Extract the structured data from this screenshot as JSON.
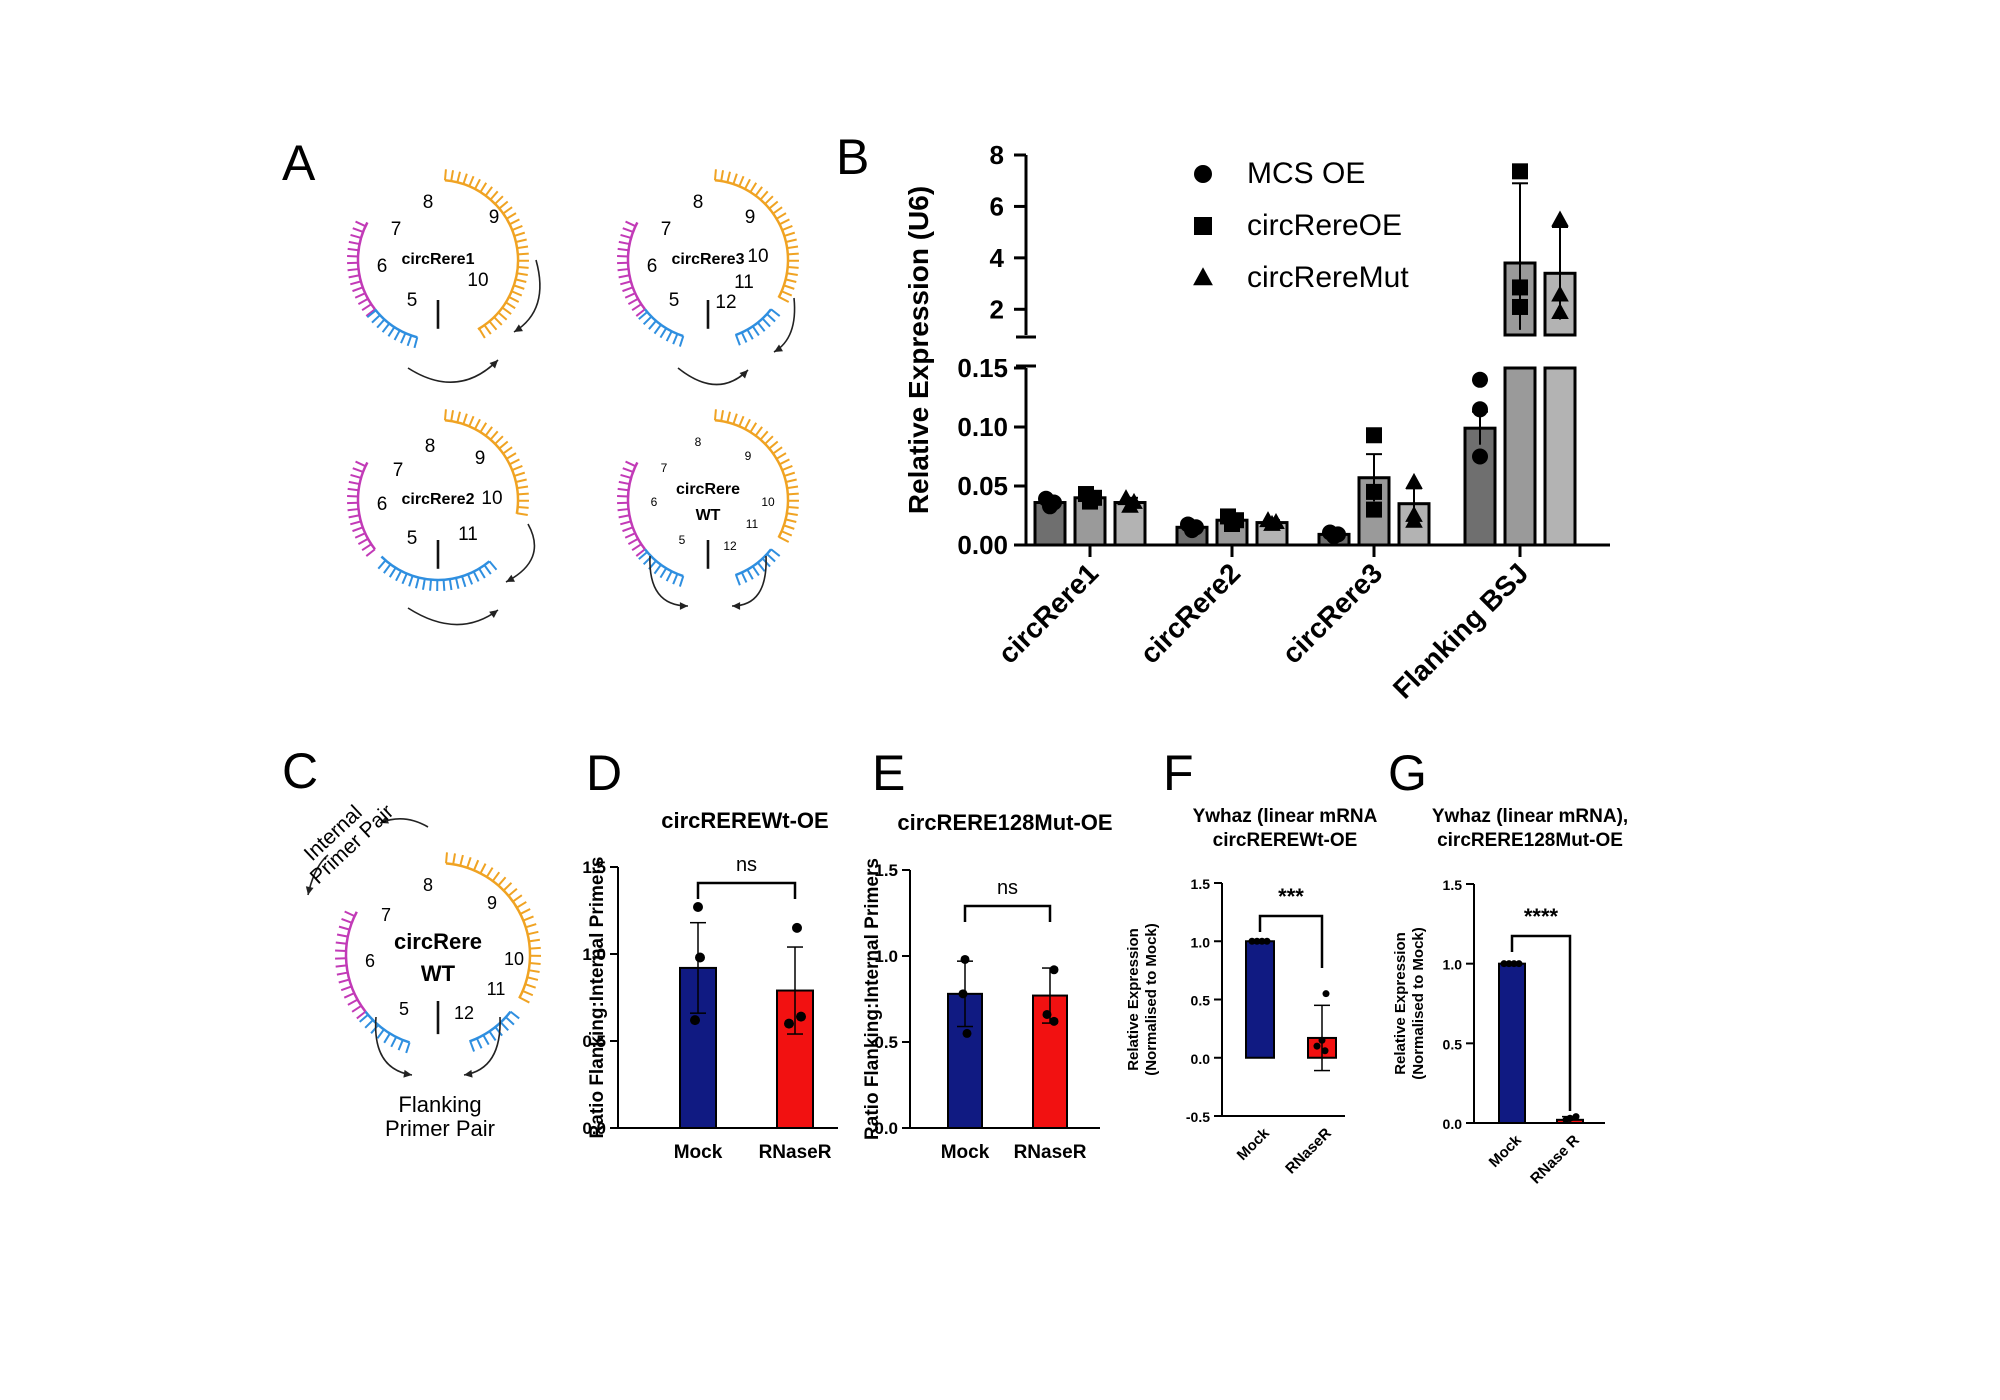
{
  "panels": {
    "A": {
      "letter": "A",
      "diagrams": [
        {
          "label": "circRere1",
          "label2": "",
          "exons": [
            "5",
            "6",
            "7",
            "8",
            "9",
            "10"
          ]
        },
        {
          "label": "circRere3",
          "label2": "",
          "exons": [
            "5",
            "6",
            "7",
            "8",
            "9",
            "10",
            "11",
            "12"
          ]
        },
        {
          "label": "circRere2",
          "label2": "",
          "exons": [
            "5",
            "6",
            "7",
            "8",
            "9",
            "10",
            "11"
          ]
        },
        {
          "label": "circRere",
          "label2": "WT",
          "exons": [
            "5",
            "6",
            "7",
            "8",
            "9",
            "10",
            "11",
            "12"
          ]
        }
      ]
    },
    "B": {
      "letter": "B"
    },
    "C": {
      "letter": "C",
      "label": "circRere",
      "label2": "WT",
      "exons": [
        "5",
        "6",
        "7",
        "8",
        "9",
        "10",
        "11",
        "12"
      ],
      "internal_primer": [
        "Internal",
        "Primer Pair"
      ],
      "flanking_primer": [
        "Flanking",
        "Primer Pair"
      ]
    },
    "D": {
      "letter": "D"
    },
    "E": {
      "letter": "E"
    },
    "F": {
      "letter": "F"
    },
    "G": {
      "letter": "G"
    }
  },
  "colors": {
    "magenta": "#c23ab7",
    "orange": "#f0a323",
    "blue": "#2f8fe0",
    "navy": "#101a82",
    "red": "#f21111",
    "dark_gray": "#6f6f6f",
    "mid_gray": "#9a9a9a",
    "light_gray": "#b3b3b3"
  },
  "chart_data": [
    {
      "id": "B",
      "type": "bar",
      "ylabel": "Relative Expression (U6)",
      "categories": [
        "circRere1",
        "circRere2",
        "circRere3",
        "Flanking BSJ"
      ],
      "series": [
        {
          "name": "MCS OE",
          "marker": "circle",
          "values": [
            0.036,
            0.015,
            0.009,
            0.099
          ]
        },
        {
          "name": "circRereOE",
          "marker": "square",
          "values": [
            0.04,
            0.021,
            0.057,
            3.8
          ]
        },
        {
          "name": "circRereMut",
          "marker": "triangle",
          "values": [
            0.036,
            0.019,
            0.035,
            3.4
          ]
        }
      ],
      "errors": [
        [
          0.004,
          0.003,
          0.002,
          0.014
        ],
        [
          0.004,
          0.004,
          0.02,
          3.1
        ],
        [
          0.004,
          0.002,
          0.013,
          1.8
        ]
      ],
      "ylim_lower": [
        0,
        0.15
      ],
      "ylim_upper": [
        1,
        8
      ],
      "yticks_lower": [
        "0.00",
        "0.05",
        "0.10",
        "0.15"
      ],
      "yticks_upper": [
        "2",
        "4",
        "6",
        "8"
      ],
      "legend_position": "top"
    },
    {
      "id": "D",
      "type": "bar",
      "title": "circREREWt-OE",
      "ylabel": "Ratio Flanking:Internal Primers",
      "categories": [
        "Mock",
        "RNaseR"
      ],
      "values": [
        0.92,
        0.79
      ],
      "errors": [
        0.26,
        0.25
      ],
      "ylim": [
        0,
        1.5
      ],
      "yticks": [
        "0.0",
        "0.5",
        "1.0",
        "1.5"
      ],
      "significance": "ns"
    },
    {
      "id": "E",
      "type": "bar",
      "title": "circRERE128Mut-OE",
      "ylabel": "Ratio Flanking:Internal Primers",
      "categories": [
        "Mock",
        "RNaseR"
      ],
      "values": [
        0.78,
        0.77
      ],
      "errors": [
        0.19,
        0.16
      ],
      "ylim": [
        0,
        1.5
      ],
      "yticks": [
        "0.0",
        "0.5",
        "1.0",
        "1.5"
      ],
      "significance": "ns"
    },
    {
      "id": "F",
      "type": "bar",
      "title": [
        "Ywhaz (linear mRNA",
        "circREREWt-OE"
      ],
      "ylabel": [
        "Relative Expression",
        "(Normalised to Mock)"
      ],
      "categories": [
        "Mock",
        "RNaseR"
      ],
      "values": [
        1.0,
        0.17
      ],
      "errors": [
        0.0,
        0.28
      ],
      "ylim": [
        -0.5,
        1.5
      ],
      "yticks": [
        "-0.5",
        "0.0",
        "0.5",
        "1.0",
        "1.5"
      ],
      "significance": "***"
    },
    {
      "id": "G",
      "type": "bar",
      "title": [
        "Ywhaz (linear mRNA),",
        "circRERE128Mut-OE"
      ],
      "ylabel": [
        "Relative Expression",
        "(Normalised to Mock)"
      ],
      "categories": [
        "Mock",
        "RNase R"
      ],
      "values": [
        1.0,
        0.02
      ],
      "errors": [
        0.0,
        0.02
      ],
      "ylim": [
        0,
        1.5
      ],
      "yticks": [
        "0.0",
        "0.5",
        "1.0",
        "1.5"
      ],
      "significance": "****"
    }
  ]
}
